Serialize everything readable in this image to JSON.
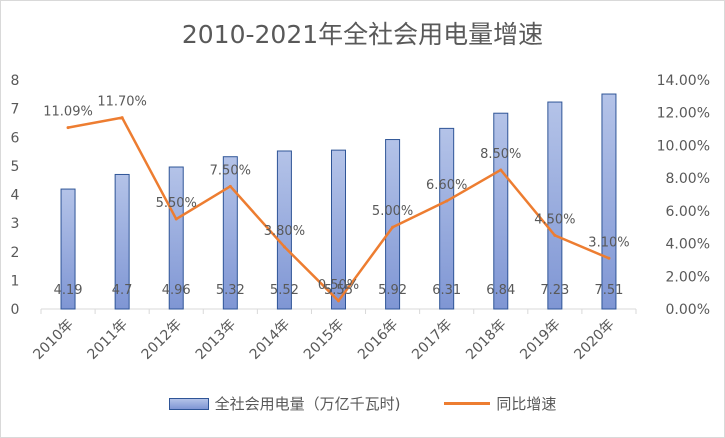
{
  "chart_data": {
    "type": "bar",
    "title": "2010-2021年全社会用电量增速",
    "categories": [
      "2010年",
      "2011年",
      "2012年",
      "2013年",
      "2014年",
      "2015年",
      "2016年",
      "2017年",
      "2018年",
      "2019年",
      "2020年"
    ],
    "series": [
      {
        "name": "全社会用电量（万亿千瓦时)",
        "type": "bar",
        "axis": "left",
        "values": [
          4.19,
          4.7,
          4.96,
          5.32,
          5.52,
          5.55,
          5.92,
          6.31,
          6.84,
          7.23,
          7.51
        ],
        "labels": [
          "4.19",
          "4.7",
          "4.96",
          "5.32",
          "5.52",
          "5.55",
          "5.92",
          "6.31",
          "6.84",
          "7.23",
          "7.51"
        ],
        "color": "#8ea3dc"
      },
      {
        "name": "同比增速",
        "type": "line",
        "axis": "right",
        "values": [
          11.09,
          11.7,
          5.5,
          7.5,
          3.8,
          0.5,
          5.0,
          6.6,
          8.5,
          4.5,
          3.1
        ],
        "labels": [
          "11.09%",
          "11.70%",
          "5.50%",
          "7.50%",
          "3.80%",
          "0.50%",
          "5.00%",
          "6.60%",
          "8.50%",
          "4.50%",
          "3.10%"
        ],
        "color": "#ed7d31"
      }
    ],
    "y_left": {
      "range": [
        0,
        8
      ],
      "ticks": [
        "0",
        "1",
        "2",
        "3",
        "4",
        "5",
        "6",
        "7",
        "8"
      ]
    },
    "y_right": {
      "range": [
        0,
        14
      ],
      "ticks": [
        "0.00%",
        "2.00%",
        "4.00%",
        "6.00%",
        "8.00%",
        "10.00%",
        "12.00%",
        "14.00%"
      ]
    },
    "grid": false,
    "legend_position": "bottom"
  }
}
